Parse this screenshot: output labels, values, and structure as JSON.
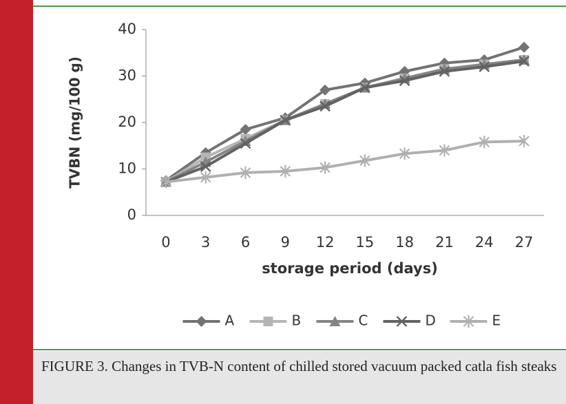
{
  "chart_data": {
    "type": "line",
    "y_label": "TVBN (mg/100 g)",
    "x_label": "storage period (days)",
    "categories": [
      "0",
      "3",
      "6",
      "9",
      "12",
      "15",
      "18",
      "21",
      "24",
      "27"
    ],
    "ylim": [
      0,
      40
    ],
    "yticks": [
      0,
      10,
      20,
      30,
      40
    ],
    "legend": "bottom",
    "series": [
      {
        "name": "A",
        "color": "#737373",
        "marker": "diamond",
        "values": [
          7.5,
          13.5,
          18.5,
          21,
          27,
          28.5,
          31,
          32.8,
          33.5,
          36.2
        ]
      },
      {
        "name": "B",
        "color": "#b5b5b5",
        "marker": "square",
        "values": [
          7.2,
          12.5,
          16.5,
          20.5,
          24,
          27.5,
          29.5,
          31.5,
          32.5,
          33.5
        ]
      },
      {
        "name": "C",
        "color": "#858585",
        "marker": "triangle",
        "values": [
          7.2,
          11.5,
          16,
          20.5,
          24,
          27.5,
          29.5,
          31.5,
          32.5,
          33.5
        ]
      },
      {
        "name": "D",
        "color": "#626262",
        "marker": "x",
        "values": [
          7.2,
          10.5,
          15.5,
          20.5,
          23.5,
          27.5,
          29,
          31,
          32,
          33.2
        ]
      },
      {
        "name": "E",
        "color": "#b0b0b0",
        "marker": "star",
        "values": [
          7.2,
          8.2,
          9.2,
          9.5,
          10.3,
          11.8,
          13.3,
          14,
          15.8,
          16
        ]
      }
    ]
  },
  "caption": "FIGURE 3. Changes in TVB-N content of chilled stored vacuum packed catla fish steaks"
}
